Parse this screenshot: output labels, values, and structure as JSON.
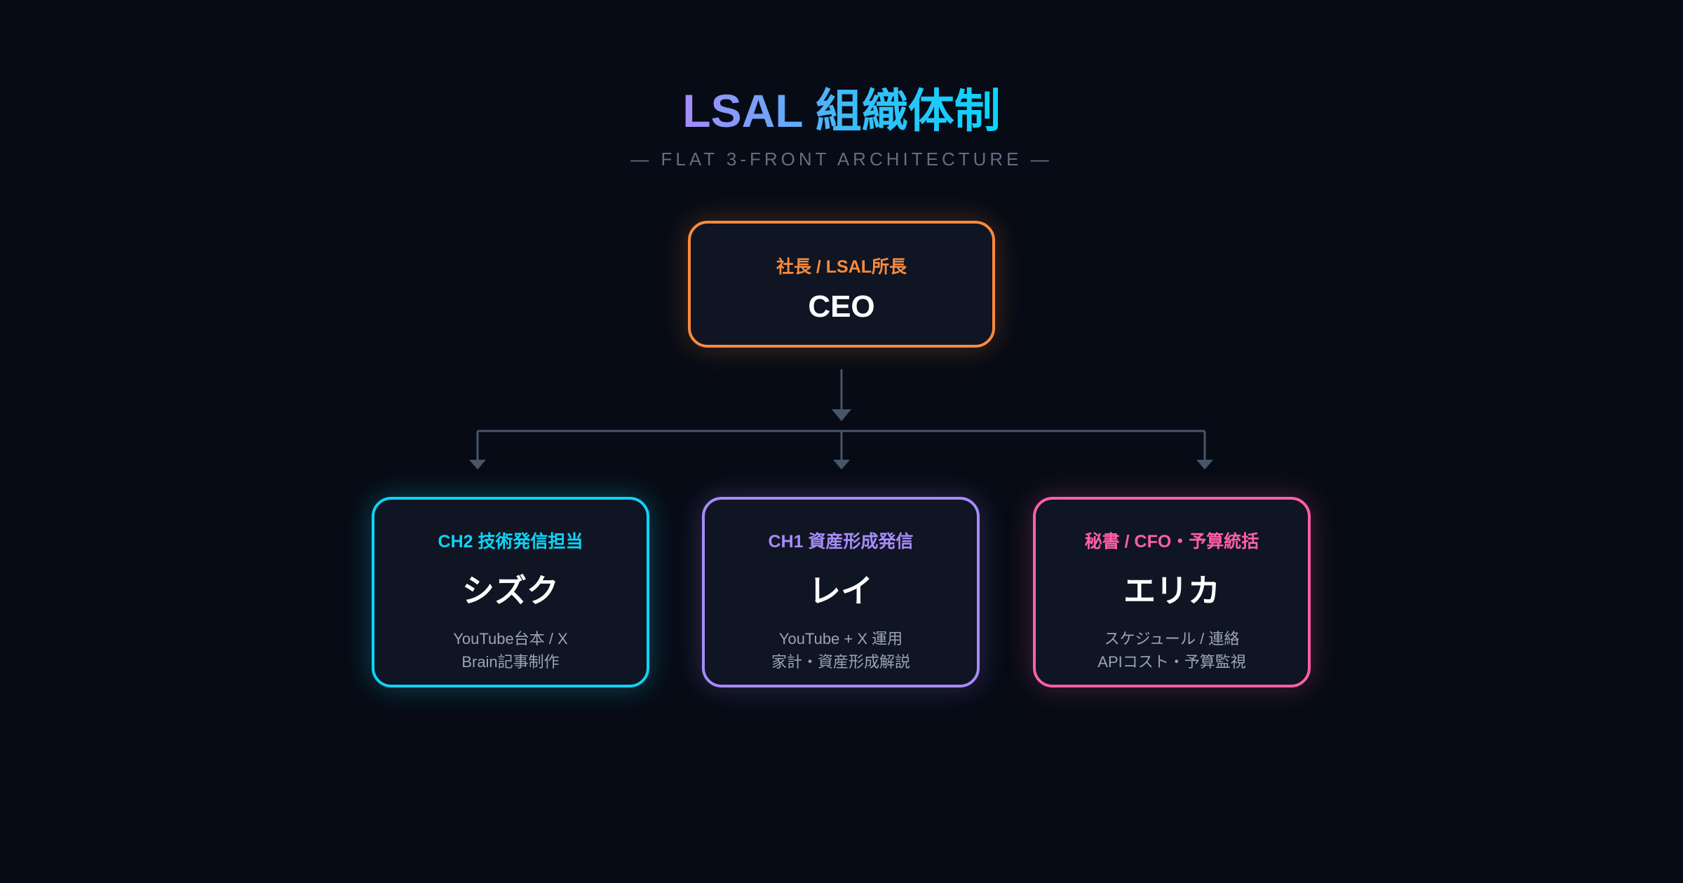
{
  "header": {
    "title": "LSAL 組織体制",
    "subtitle": "— FLAT 3-FRONT ARCHITECTURE —"
  },
  "ceo": {
    "role": "社長 / LSAL所長",
    "name": "CEO",
    "color": "#fb8a3c"
  },
  "members": [
    {
      "role": "CH2 技術発信担当",
      "name": "シズク",
      "desc": [
        "YouTube台本 / X",
        "Brain記事制作"
      ],
      "color": "#0fd3f5"
    },
    {
      "role": "CH1 資産形成発信",
      "name": "レイ",
      "desc": [
        "YouTube + X 運用",
        "家計・資産形成解説"
      ],
      "color": "#a78bfa"
    },
    {
      "role": "秘書 / CFO・予算統括",
      "name": "エリカ",
      "desc": [
        "スケジュール / 連絡",
        "APIコスト・予算監視"
      ],
      "color": "#ff5fa8"
    }
  ]
}
